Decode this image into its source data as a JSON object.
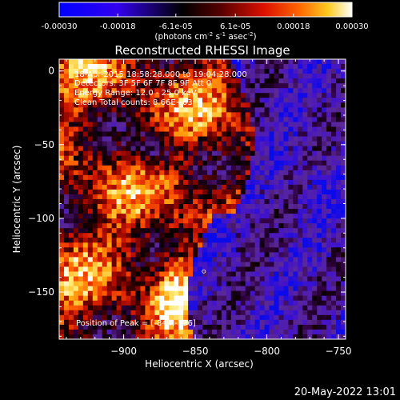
{
  "colorbar": {
    "ticks": [
      "-0.00030",
      "-0.00018",
      "-6.1e-05",
      "6.1e-05",
      "0.00018",
      "0.00030"
    ],
    "tick_values": [
      -0.0003,
      -0.00018,
      -6.1e-05,
      6.1e-05,
      0.00018,
      0.0003
    ],
    "range": [
      -0.0003,
      0.0003
    ],
    "unit_base": "(photons cm",
    "unit_exp1": "-2",
    "unit_mid": " s",
    "unit_exp2": "-1",
    "unit_mid2": " asec",
    "unit_exp3": "-2",
    "unit_end": ")",
    "colors": [
      "#0000ff",
      "#3300ff",
      "#000000",
      "#550000",
      "#cc0000",
      "#ff5500",
      "#ffcc00",
      "#ffffff"
    ]
  },
  "chart_data": {
    "type": "heatmap",
    "title": "Reconstructed RHESSI Image",
    "xlabel": "Heliocentric X (arcsec)",
    "ylabel": "Heliocentric Y (arcsec)",
    "xlim": [
      -945,
      -745
    ],
    "ylim": [
      -182,
      8
    ],
    "xticks": [
      -900,
      -850,
      -800,
      -750
    ],
    "yticks": [
      0,
      -50,
      -100,
      -150
    ],
    "peak": {
      "x": -844,
      "y": -136
    },
    "annotations": [
      "18-Apr-2015 18:58:28.000 to 19:04:28.000",
      "Detectors: 3F 5F 6F 7F 8F 9F  Att 0",
      "Energy Range: 12.0 - 25.0 keV",
      "Clean     Total counts: 8.66E+03"
    ],
    "peak_label": "Position of Peak = [-844,-136]",
    "timestamp": "20-May-2022 13:01"
  }
}
